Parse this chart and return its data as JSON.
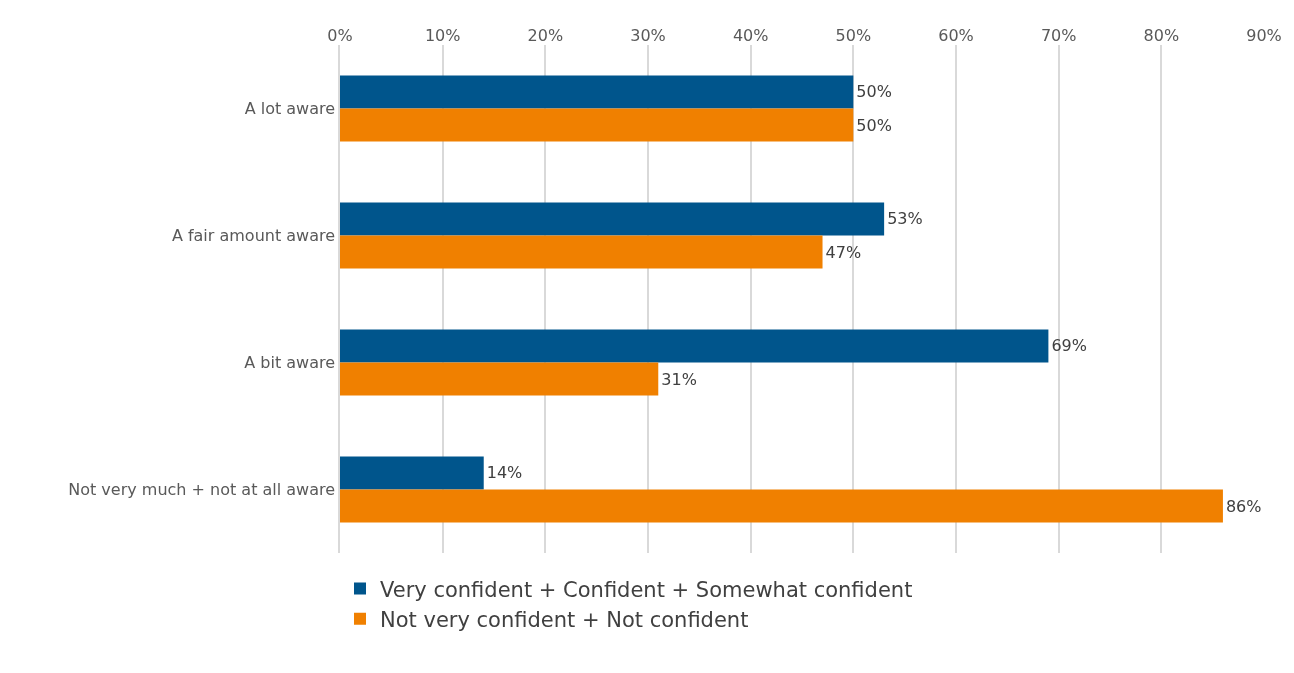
{
  "chart_data": {
    "type": "bar",
    "orientation": "horizontal",
    "categories": [
      "A lot aware",
      "A fair amount aware",
      "A bit aware",
      "Not very much + not at all aware"
    ],
    "series": [
      {
        "name": "Very confident + Confident + Somewhat confident",
        "color": "#00558c",
        "values": [
          50,
          53,
          69,
          14
        ],
        "value_labels": [
          "50%",
          "53%",
          "69%",
          "14%"
        ]
      },
      {
        "name": "Not very confident + Not confident",
        "color": "#f08000",
        "values": [
          50,
          47,
          31,
          86
        ],
        "value_labels": [
          "50%",
          "47%",
          "31%",
          "86%"
        ]
      }
    ],
    "xlim": [
      0,
      90
    ],
    "xticks": [
      {
        "value": 0,
        "label": "0%"
      },
      {
        "value": 10,
        "label": "10%"
      },
      {
        "value": 20,
        "label": "20%"
      },
      {
        "value": 30,
        "label": "30%"
      },
      {
        "value": 40,
        "label": "40%"
      },
      {
        "value": 50,
        "label": "50%"
      },
      {
        "value": 60,
        "label": "60%"
      },
      {
        "value": 70,
        "label": "70%"
      },
      {
        "value": 80,
        "label": "80%"
      },
      {
        "value": 90,
        "label": "90%"
      }
    ],
    "grid": "x",
    "legend": "bottom"
  }
}
